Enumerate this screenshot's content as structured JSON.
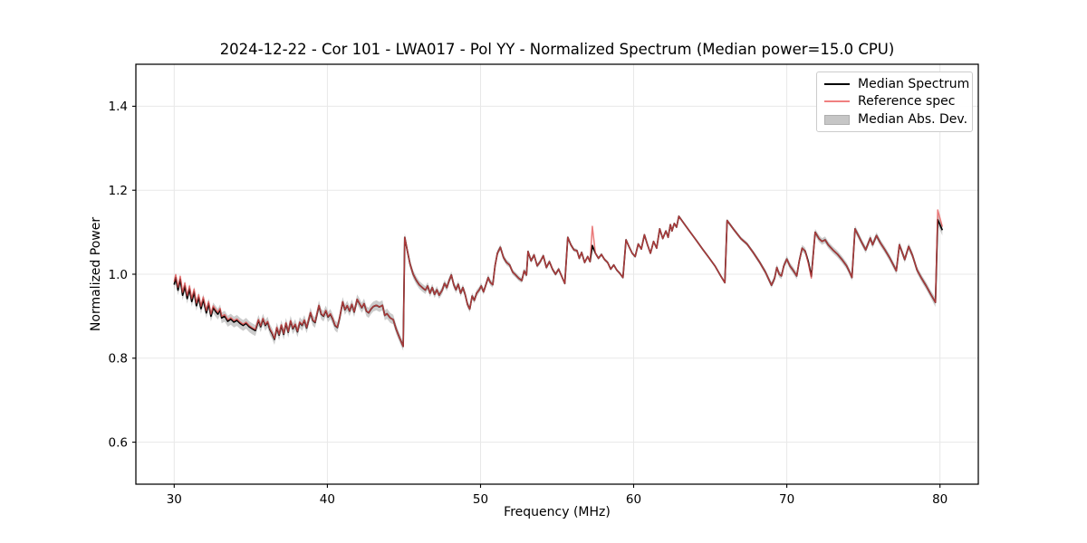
{
  "chart_data": {
    "type": "line",
    "title": "2024-12-22 - Cor 101 - LWA017 - Pol YY - Normalized Spectrum (Median power=15.0 CPU)",
    "xlabel": "Frequency (MHz)",
    "ylabel": "Normalized Power",
    "xlim": [
      27.5,
      82.5
    ],
    "ylim": [
      0.5,
      1.5
    ],
    "xticks": [
      30,
      40,
      50,
      60,
      70,
      80
    ],
    "xtick_labels": [
      "30",
      "40",
      "50",
      "60",
      "70",
      "80"
    ],
    "yticks": [
      0.6,
      0.8,
      1.0,
      1.2,
      1.4
    ],
    "ytick_labels": [
      "0.6",
      "0.8",
      "1.0",
      "1.2",
      "1.4"
    ],
    "grid": true,
    "legend_position": "upper right",
    "legend": [
      {
        "label": "Median Spectrum",
        "type": "line",
        "color": "#000000"
      },
      {
        "label": "Reference spec",
        "type": "line",
        "color": "#f08080"
      },
      {
        "label": "Median Abs. Dev.",
        "type": "patch",
        "color": "#c6c6c6"
      }
    ],
    "colors": {
      "median": "#000000",
      "reference": "#e34d4d",
      "reference_opacity": 0.75,
      "band": "#9a9a9a",
      "band_opacity": 0.5,
      "grid": "#e8e8e8",
      "spine": "#000000"
    },
    "series": {
      "median_spectrum": {
        "x": [
          30.0,
          30.1,
          30.25,
          30.4,
          30.55,
          30.7,
          30.85,
          31.0,
          31.15,
          31.3,
          31.45,
          31.6,
          31.75,
          31.9,
          32.1,
          32.25,
          32.4,
          32.55,
          32.7,
          32.85,
          33.0,
          33.1,
          33.3,
          33.5,
          33.7,
          33.9,
          34.1,
          34.3,
          34.5,
          34.7,
          34.9,
          35.1,
          35.3,
          35.5,
          35.65,
          35.8,
          35.95,
          36.1,
          36.25,
          36.4,
          36.55,
          36.7,
          36.85,
          37.0,
          37.15,
          37.3,
          37.45,
          37.6,
          37.75,
          37.9,
          38.05,
          38.2,
          38.35,
          38.5,
          38.65,
          38.9,
          39.05,
          39.2,
          39.45,
          39.6,
          39.75,
          39.9,
          40.05,
          40.2,
          40.35,
          40.5,
          40.65,
          40.8,
          41.0,
          41.15,
          41.3,
          41.45,
          41.6,
          41.75,
          41.95,
          42.1,
          42.25,
          42.4,
          42.55,
          42.7,
          42.85,
          43.0,
          43.2,
          43.4,
          43.6,
          43.75,
          43.9,
          44.1,
          44.3,
          44.5,
          44.7,
          44.95,
          45.05,
          45.2,
          45.4,
          45.6,
          45.8,
          46.0,
          46.2,
          46.4,
          46.55,
          46.7,
          46.85,
          47.0,
          47.15,
          47.3,
          47.5,
          47.65,
          47.8,
          47.95,
          48.1,
          48.25,
          48.4,
          48.55,
          48.7,
          48.85,
          49.0,
          49.15,
          49.3,
          49.45,
          49.6,
          49.75,
          49.9,
          50.05,
          50.2,
          50.35,
          50.5,
          50.65,
          50.8,
          50.95,
          51.1,
          51.3,
          51.5,
          51.7,
          51.9,
          52.1,
          52.3,
          52.5,
          52.7,
          52.85,
          53.0,
          53.1,
          53.3,
          53.5,
          53.7,
          53.9,
          54.1,
          54.3,
          54.5,
          54.7,
          54.9,
          55.1,
          55.3,
          55.5,
          55.7,
          55.9,
          56.1,
          56.3,
          56.45,
          56.6,
          56.8,
          57.0,
          57.15,
          57.3,
          57.5,
          57.7,
          57.9,
          58.1,
          58.3,
          58.5,
          58.7,
          58.9,
          59.1,
          59.3,
          59.5,
          59.7,
          59.9,
          60.1,
          60.3,
          60.5,
          60.7,
          60.9,
          61.1,
          61.3,
          61.5,
          61.7,
          61.9,
          62.1,
          62.25,
          62.4,
          62.5,
          62.65,
          62.8,
          62.95,
          63.3,
          63.7,
          64.1,
          64.5,
          64.9,
          65.3,
          65.7,
          65.95,
          66.1,
          66.5,
          67.0,
          67.4,
          67.8,
          68.2,
          68.6,
          69.0,
          69.2,
          69.35,
          69.5,
          69.65,
          69.8,
          70.0,
          70.2,
          70.4,
          70.65,
          70.8,
          71.0,
          71.2,
          71.4,
          71.6,
          71.85,
          72.1,
          72.3,
          72.5,
          72.7,
          73.0,
          73.3,
          73.6,
          73.9,
          74.1,
          74.25,
          74.45,
          74.7,
          74.9,
          75.15,
          75.45,
          75.6,
          75.85,
          76.1,
          76.4,
          76.7,
          76.95,
          77.15,
          77.35,
          77.55,
          77.7,
          77.95,
          78.2,
          78.5,
          78.8,
          79.1,
          79.4,
          79.7,
          79.85,
          80.15
        ],
        "y": [
          0.975,
          0.992,
          0.962,
          0.988,
          0.95,
          0.972,
          0.942,
          0.965,
          0.935,
          0.958,
          0.925,
          0.945,
          0.918,
          0.94,
          0.908,
          0.93,
          0.9,
          0.92,
          0.912,
          0.905,
          0.915,
          0.896,
          0.9,
          0.888,
          0.893,
          0.886,
          0.89,
          0.883,
          0.878,
          0.883,
          0.875,
          0.87,
          0.866,
          0.89,
          0.875,
          0.893,
          0.878,
          0.886,
          0.868,
          0.858,
          0.845,
          0.872,
          0.855,
          0.878,
          0.857,
          0.883,
          0.862,
          0.888,
          0.87,
          0.88,
          0.863,
          0.885,
          0.878,
          0.89,
          0.872,
          0.908,
          0.89,
          0.885,
          0.925,
          0.905,
          0.9,
          0.913,
          0.898,
          0.905,
          0.893,
          0.878,
          0.873,
          0.895,
          0.934,
          0.915,
          0.925,
          0.912,
          0.928,
          0.91,
          0.94,
          0.93,
          0.92,
          0.93,
          0.912,
          0.908,
          0.917,
          0.923,
          0.926,
          0.922,
          0.926,
          0.902,
          0.906,
          0.896,
          0.892,
          0.868,
          0.85,
          0.828,
          1.088,
          1.06,
          1.024,
          1.0,
          0.986,
          0.975,
          0.968,
          0.962,
          0.972,
          0.955,
          0.968,
          0.952,
          0.963,
          0.95,
          0.962,
          0.978,
          0.968,
          0.985,
          0.998,
          0.975,
          0.963,
          0.976,
          0.955,
          0.968,
          0.952,
          0.928,
          0.917,
          0.948,
          0.938,
          0.955,
          0.962,
          0.972,
          0.958,
          0.975,
          0.992,
          0.98,
          0.975,
          1.02,
          1.05,
          1.064,
          1.04,
          1.028,
          1.022,
          1.005,
          0.998,
          0.99,
          0.985,
          1.008,
          0.998,
          1.054,
          1.032,
          1.046,
          1.02,
          1.03,
          1.044,
          1.016,
          1.03,
          1.012,
          1.0,
          1.012,
          0.995,
          0.978,
          1.088,
          1.07,
          1.058,
          1.056,
          1.038,
          1.052,
          1.028,
          1.042,
          1.03,
          1.068,
          1.05,
          1.038,
          1.047,
          1.035,
          1.028,
          1.012,
          1.022,
          1.01,
          1.002,
          0.992,
          1.082,
          1.065,
          1.05,
          1.042,
          1.072,
          1.06,
          1.094,
          1.07,
          1.05,
          1.078,
          1.062,
          1.108,
          1.085,
          1.103,
          1.088,
          1.118,
          1.103,
          1.121,
          1.112,
          1.138,
          1.12,
          1.1,
          1.08,
          1.06,
          1.04,
          1.02,
          0.995,
          0.98,
          1.128,
          1.108,
          1.085,
          1.072,
          1.052,
          1.03,
          1.005,
          0.974,
          0.99,
          1.016,
          1.0,
          0.996,
          1.02,
          1.036,
          1.02,
          1.01,
          0.996,
          1.03,
          1.062,
          1.055,
          1.03,
          0.995,
          1.1,
          1.085,
          1.078,
          1.082,
          1.07,
          1.058,
          1.048,
          1.035,
          1.02,
          1.005,
          0.992,
          1.108,
          1.09,
          1.075,
          1.058,
          1.086,
          1.07,
          1.092,
          1.075,
          1.058,
          1.04,
          1.022,
          1.008,
          1.07,
          1.05,
          1.035,
          1.066,
          1.045,
          1.01,
          0.99,
          0.972,
          0.952,
          0.933,
          1.13,
          1.105
        ]
      },
      "reference_delta_breakpoints": [
        [
          27.5,
          0.007
        ],
        [
          31.0,
          0.007
        ],
        [
          33.0,
          0.004
        ],
        [
          36.0,
          0.002
        ],
        [
          40.0,
          0.001
        ],
        [
          44.0,
          0.0
        ],
        [
          57.2,
          0.0
        ],
        [
          57.3,
          0.046
        ],
        [
          57.4,
          0.0
        ],
        [
          71.3,
          0.0
        ],
        [
          71.5,
          -0.008
        ],
        [
          71.7,
          0.0
        ],
        [
          79.7,
          0.0
        ],
        [
          79.85,
          0.023
        ],
        [
          80.0,
          0.012
        ],
        [
          80.15,
          0.008
        ]
      ],
      "mad_breakpoints": [
        [
          30,
          0.012
        ],
        [
          33,
          0.013
        ],
        [
          36,
          0.013
        ],
        [
          38,
          0.013
        ],
        [
          41,
          0.012
        ],
        [
          44,
          0.012
        ],
        [
          45,
          0.01
        ],
        [
          47,
          0.009
        ],
        [
          49,
          0.008
        ],
        [
          51,
          0.007
        ],
        [
          53,
          0.006
        ],
        [
          55,
          0.005
        ],
        [
          57,
          0.004
        ],
        [
          59,
          0.0035
        ],
        [
          61,
          0.003
        ],
        [
          63,
          0.003
        ],
        [
          65,
          0.003
        ],
        [
          66,
          0.004
        ],
        [
          68,
          0.005
        ],
        [
          69,
          0.007
        ],
        [
          70,
          0.008
        ],
        [
          74,
          0.008
        ],
        [
          78,
          0.008
        ],
        [
          79.5,
          0.009
        ],
        [
          79.85,
          0.013
        ],
        [
          80.15,
          0.013
        ]
      ]
    }
  }
}
